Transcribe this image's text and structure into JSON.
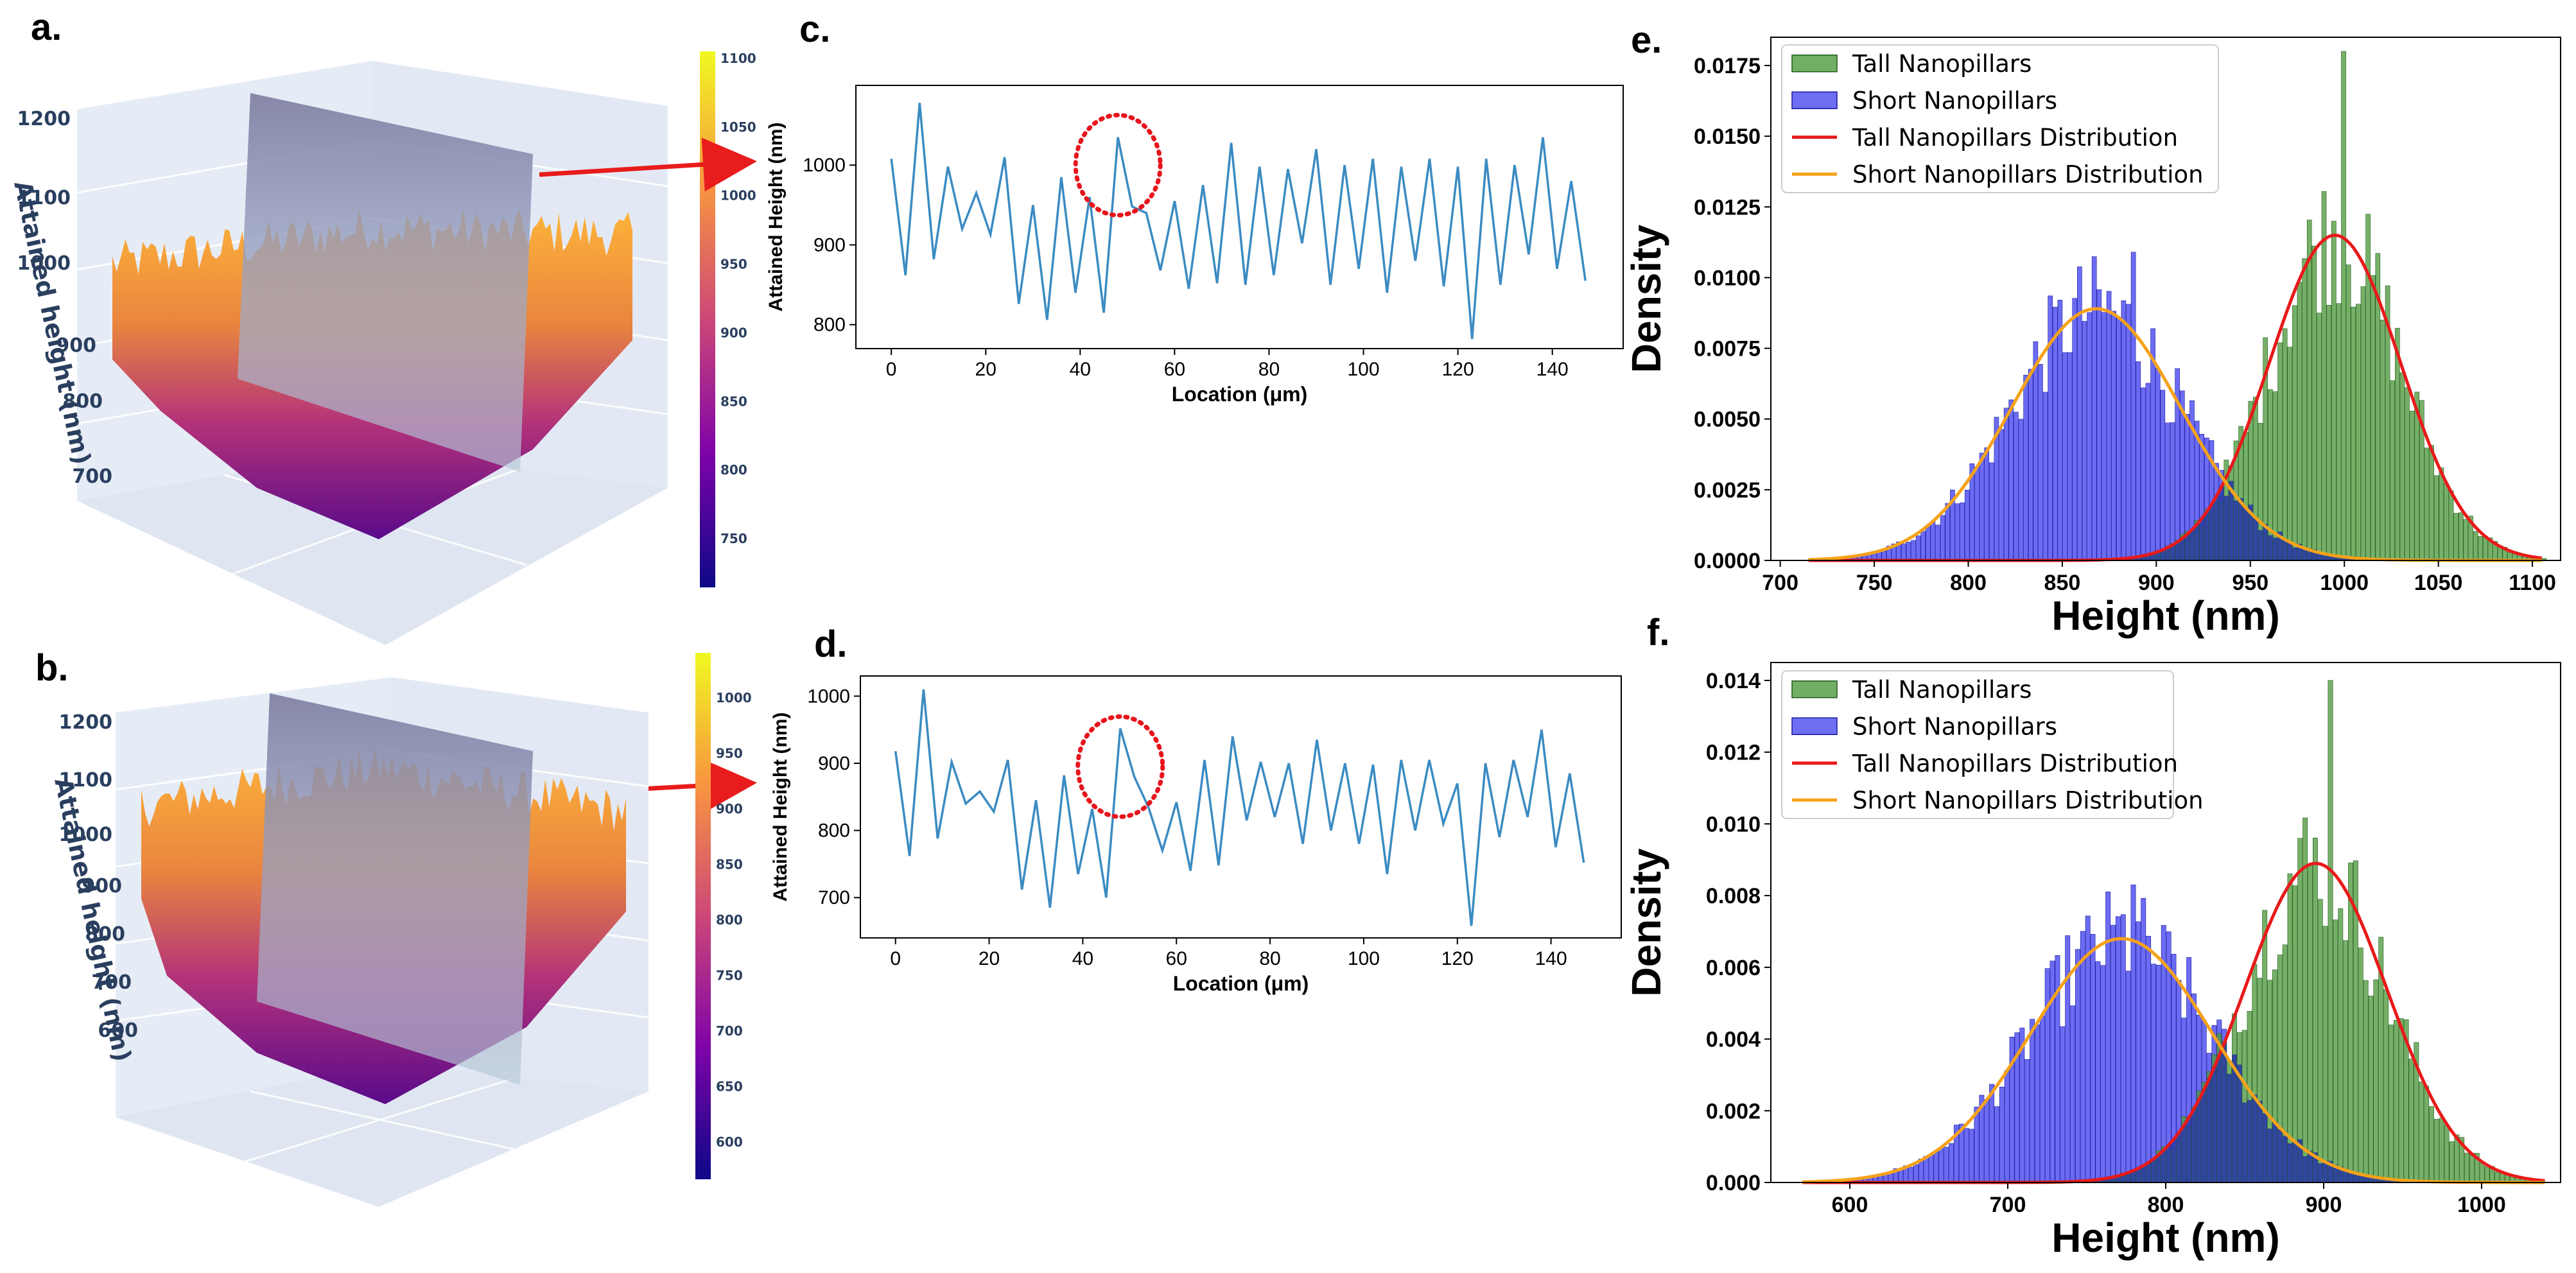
{
  "panels": {
    "a": {
      "label": "a.",
      "zlabel": "Attained height (nm)",
      "zticks": [
        "1200",
        "1100",
        "1000",
        "900",
        "800",
        "700"
      ],
      "colorbar_ticks": [
        "1100",
        "1050",
        "1000",
        "950",
        "900",
        "850",
        "800",
        "750"
      ]
    },
    "b": {
      "label": "b.",
      "zlabel": "Attained height (nm)",
      "zticks": [
        "1200",
        "1100",
        "1000",
        "900",
        "800",
        "700",
        "600"
      ],
      "colorbar_ticks": [
        "1000",
        "950",
        "900",
        "850",
        "800",
        "750",
        "700",
        "650",
        "600"
      ]
    },
    "c": {
      "label": "c."
    },
    "d": {
      "label": "d."
    },
    "e": {
      "label": "e."
    },
    "f": {
      "label": "f."
    }
  },
  "colors": {
    "line": "#3b8bc2",
    "circle": "#e8141c",
    "arrow": "#e81c1c",
    "tall_bar": "#4f9a3d",
    "short_bar": "#4a4af0",
    "overlap_bar": "#2a3aa8",
    "tall_fit": "#e81a1a",
    "short_fit": "#f5a21a"
  },
  "chart_data": [
    {
      "id": "c",
      "type": "line",
      "xlabel": "Location (μm)",
      "ylabel": "Attained Height (nm)",
      "xlim": [
        -7.5,
        155
      ],
      "ylim": [
        770,
        1100
      ],
      "xticks": [
        0,
        20,
        40,
        60,
        80,
        100,
        120,
        140
      ],
      "yticks": [
        800,
        900,
        1000
      ],
      "x": [
        0,
        3,
        6,
        9,
        12,
        15,
        18,
        21,
        24,
        27,
        30,
        33,
        36,
        39,
        42,
        45,
        48,
        51,
        54,
        57,
        60,
        63,
        66,
        69,
        72,
        75,
        78,
        81,
        84,
        87,
        90,
        93,
        96,
        99,
        102,
        105,
        108,
        111,
        114,
        117,
        120,
        123,
        126,
        129,
        132,
        135,
        138,
        141,
        144,
        147
      ],
      "y": [
        1008,
        862,
        1078,
        882,
        998,
        920,
        965,
        913,
        1010,
        826,
        950,
        806,
        985,
        840,
        960,
        815,
        1035,
        948,
        940,
        868,
        955,
        845,
        975,
        852,
        1028,
        850,
        998,
        862,
        995,
        902,
        1020,
        850,
        1000,
        870,
        1008,
        840,
        998,
        880,
        1008,
        848,
        998,
        782,
        1008,
        850,
        1000,
        888,
        1035,
        870,
        980,
        855
      ],
      "annotation": "dotted circle around x≈48"
    },
    {
      "id": "d",
      "type": "line",
      "xlabel": "Location (μm)",
      "ylabel": "Attained Height (nm)",
      "xlim": [
        -7.5,
        155
      ],
      "ylim": [
        640,
        1030
      ],
      "xticks": [
        0,
        20,
        40,
        60,
        80,
        100,
        120,
        140
      ],
      "yticks": [
        700,
        800,
        900,
        1000
      ],
      "x": [
        0,
        3,
        6,
        9,
        12,
        15,
        18,
        21,
        24,
        27,
        30,
        33,
        36,
        39,
        42,
        45,
        48,
        51,
        54,
        57,
        60,
        63,
        66,
        69,
        72,
        75,
        78,
        81,
        84,
        87,
        90,
        93,
        96,
        99,
        102,
        105,
        108,
        111,
        114,
        117,
        120,
        123,
        126,
        129,
        132,
        135,
        138,
        141,
        144,
        147
      ],
      "y": [
        918,
        762,
        1010,
        788,
        902,
        840,
        858,
        828,
        905,
        712,
        845,
        685,
        882,
        735,
        832,
        700,
        952,
        880,
        835,
        770,
        842,
        740,
        905,
        748,
        940,
        815,
        902,
        820,
        900,
        780,
        935,
        800,
        900,
        780,
        898,
        735,
        905,
        800,
        905,
        810,
        870,
        658,
        900,
        790,
        905,
        820,
        950,
        775,
        885,
        752
      ]
    },
    {
      "id": "e",
      "type": "bar",
      "xlabel": "Height (nm)",
      "ylabel": "Density",
      "xlim": [
        695,
        1115
      ],
      "ylim": [
        0,
        0.0185
      ],
      "xticks": [
        700,
        750,
        800,
        850,
        900,
        950,
        1000,
        1050,
        1100
      ],
      "yticks": [
        0.0,
        0.0025,
        0.005,
        0.0075,
        0.01,
        0.0125,
        0.015,
        0.0175
      ],
      "ytick_labels": [
        "0.0000",
        "0.0025",
        "0.0050",
        "0.0075",
        "0.0100",
        "0.0125",
        "0.0150",
        "0.0175"
      ],
      "series": [
        {
          "name": "Tall Nanopillars",
          "kind": "histogram",
          "mean": 995,
          "sd": 35,
          "n": 1100,
          "peak": 0.018,
          "peak_x": 1000
        },
        {
          "name": "Short Nanopillars",
          "kind": "histogram",
          "mean": 868,
          "sd": 45,
          "n": 1100,
          "peak": 0.0109,
          "peak_x": 887
        },
        {
          "name": "Tall Nanopillars Distribution",
          "kind": "normal",
          "mean": 995,
          "sd": 35,
          "peak": 0.0115
        },
        {
          "name": "Short Nanopillars Distribution",
          "kind": "normal",
          "mean": 868,
          "sd": 45,
          "peak": 0.0089
        }
      ],
      "legend": "top-left"
    },
    {
      "id": "f",
      "type": "bar",
      "xlabel": "Height (nm)",
      "ylabel": "Density",
      "xlim": [
        550,
        1050
      ],
      "ylim": [
        0,
        0.0145
      ],
      "xticks": [
        600,
        700,
        800,
        900,
        1000
      ],
      "yticks": [
        0.0,
        0.002,
        0.004,
        0.006,
        0.008,
        0.01,
        0.012,
        0.014
      ],
      "ytick_labels": [
        "0.000",
        "0.002",
        "0.004",
        "0.006",
        "0.008",
        "0.010",
        "0.012",
        "0.014"
      ],
      "series": [
        {
          "name": "Tall Nanopillars",
          "kind": "histogram",
          "mean": 895,
          "sd": 45,
          "n": 1100,
          "peak": 0.014,
          "peak_x": 905
        },
        {
          "name": "Short Nanopillars",
          "kind": "histogram",
          "mean": 772,
          "sd": 58,
          "n": 1100,
          "peak": 0.0083,
          "peak_x": 780
        },
        {
          "name": "Tall Nanopillars Distribution",
          "kind": "normal",
          "mean": 895,
          "sd": 45,
          "peak": 0.0089
        },
        {
          "name": "Short Nanopillars Distribution",
          "kind": "normal",
          "mean": 772,
          "sd": 58,
          "peak": 0.0068
        }
      ],
      "legend": "top-left"
    }
  ]
}
